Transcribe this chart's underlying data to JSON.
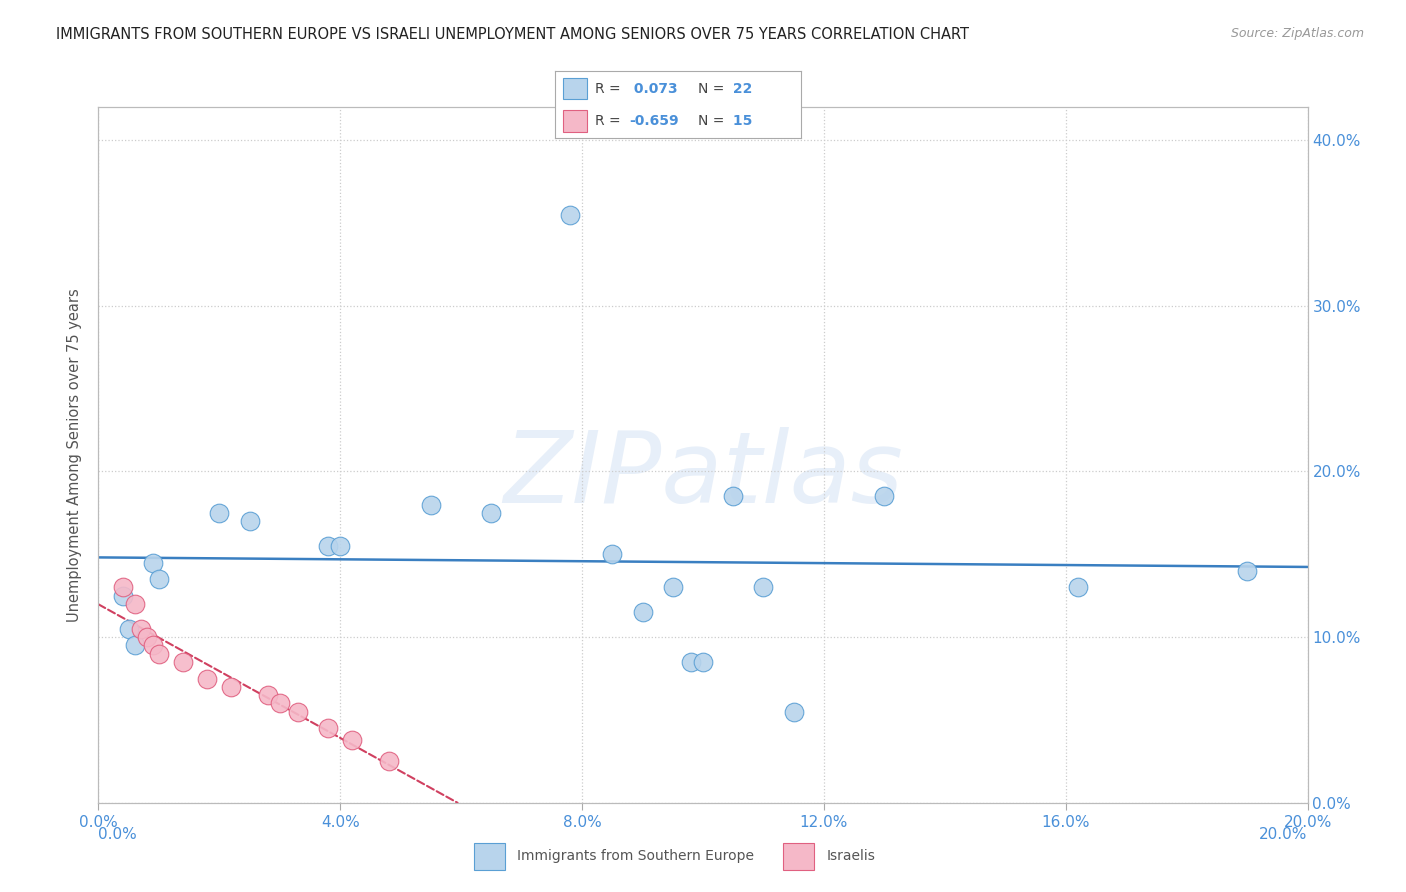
{
  "title": "IMMIGRANTS FROM SOUTHERN EUROPE VS ISRAELI UNEMPLOYMENT AMONG SENIORS OVER 75 YEARS CORRELATION CHART",
  "source": "Source: ZipAtlas.com",
  "ylabel": "Unemployment Among Seniors over 75 years",
  "legend_blue": {
    "R": "0.073",
    "N": "22",
    "label": "Immigrants from Southern Europe"
  },
  "legend_pink": {
    "R": "-0.659",
    "N": "15",
    "label": "Israelis"
  },
  "watermark": "ZIPatlas",
  "blue_color": "#b8d4ec",
  "blue_edge_color": "#5a9fd4",
  "blue_line_color": "#3a7fc1",
  "pink_color": "#f5b8c8",
  "pink_edge_color": "#e06080",
  "pink_line_color": "#d04060",
  "blue_scatter": [
    [
      0.004,
      0.125
    ],
    [
      0.005,
      0.105
    ],
    [
      0.006,
      0.095
    ],
    [
      0.009,
      0.145
    ],
    [
      0.01,
      0.135
    ],
    [
      0.02,
      0.175
    ],
    [
      0.025,
      0.17
    ],
    [
      0.038,
      0.155
    ],
    [
      0.04,
      0.155
    ],
    [
      0.055,
      0.18
    ],
    [
      0.065,
      0.175
    ],
    [
      0.085,
      0.15
    ],
    [
      0.09,
      0.115
    ],
    [
      0.095,
      0.13
    ],
    [
      0.098,
      0.085
    ],
    [
      0.1,
      0.085
    ],
    [
      0.105,
      0.185
    ],
    [
      0.11,
      0.13
    ],
    [
      0.115,
      0.055
    ],
    [
      0.13,
      0.185
    ],
    [
      0.162,
      0.13
    ],
    [
      0.19,
      0.14
    ]
  ],
  "pink_scatter": [
    [
      0.004,
      0.13
    ],
    [
      0.006,
      0.12
    ],
    [
      0.007,
      0.105
    ],
    [
      0.008,
      0.1
    ],
    [
      0.009,
      0.095
    ],
    [
      0.01,
      0.09
    ],
    [
      0.014,
      0.085
    ],
    [
      0.018,
      0.075
    ],
    [
      0.022,
      0.07
    ],
    [
      0.028,
      0.065
    ],
    [
      0.03,
      0.06
    ],
    [
      0.033,
      0.055
    ],
    [
      0.038,
      0.045
    ],
    [
      0.042,
      0.038
    ],
    [
      0.048,
      0.025
    ]
  ],
  "blue_outlier": [
    0.078,
    0.355
  ],
  "xlim": [
    0.0,
    0.2
  ],
  "ylim": [
    0.0,
    0.42
  ],
  "x_ticks": [
    0.0,
    0.04,
    0.08,
    0.12,
    0.16,
    0.2
  ],
  "x_tick_labels": [
    "0.0%",
    "4.0%",
    "8.0%",
    "12.0%",
    "16.0%",
    "20.0%"
  ],
  "y_ticks": [
    0.0,
    0.1,
    0.2,
    0.3,
    0.4
  ],
  "y_tick_labels_right": [
    "0.0%",
    "10.0%",
    "20.0%",
    "30.0%",
    "40.0%"
  ],
  "bg_color": "#ffffff",
  "grid_color": "#cccccc",
  "tick_color": "#4a90d9",
  "axis_label_color": "#555555",
  "title_color": "#222222",
  "source_color": "#999999"
}
